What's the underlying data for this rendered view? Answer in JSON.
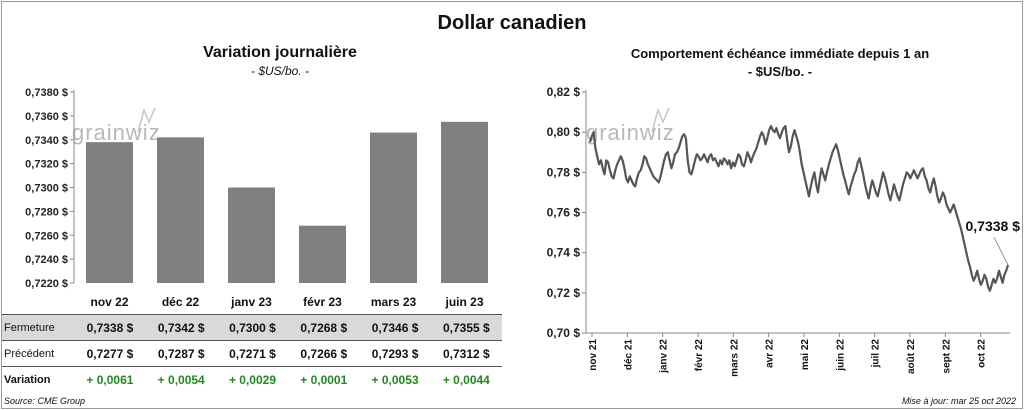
{
  "title": "Dollar canadien",
  "left_chart": {
    "title": "Variation  journalière",
    "subtitle": "- $US/bo. -"
  },
  "right_chart": {
    "title": "Comportement échéance immédiate depuis 1 an",
    "subtitle": "- $US/bo. -",
    "last_label": "0,7338 $"
  },
  "watermark": "grainwiz",
  "table": {
    "rows": [
      {
        "label": "Fermeture",
        "values": [
          "0,7338  $",
          "0,7342  $",
          "0,7300  $",
          "0,7268  $",
          "0,7346  $",
          "0,7355  $"
        ]
      },
      {
        "label": "Précédent",
        "values": [
          "0,7277  $",
          "0,7287  $",
          "0,7271  $",
          "0,7266  $",
          "0,7293  $",
          "0,7312  $"
        ]
      },
      {
        "label": "Variation",
        "values": [
          "+ 0,0061",
          "+ 0,0054",
          "+ 0,0029",
          "+ 0,0001",
          "+ 0,0053",
          "+ 0,0044"
        ]
      }
    ]
  },
  "footer": {
    "source": "Source: CME Group",
    "updated": "Mise à jour: mar 25 oct 2022"
  },
  "colors": {
    "bar": "#808080",
    "line": "#555555",
    "positive": "#1e8a1e",
    "row_highlight": "#d9d9d9"
  },
  "chart_data": [
    {
      "type": "bar",
      "categories": [
        "nov 22",
        "déc 22",
        "janv 23",
        "févr 23",
        "mars 23",
        "juin 23"
      ],
      "series": [
        {
          "values": [
            0.7338,
            0.7342,
            0.73,
            0.7268,
            0.7346,
            0.7355
          ]
        }
      ],
      "ylim": [
        0.722,
        0.738
      ],
      "yticks": [
        "0,7220 $",
        "0,7240 $",
        "0,7260 $",
        "0,7280 $",
        "0,7300 $",
        "0,7320 $",
        "0,7340 $",
        "0,7360 $",
        "0,7380 $"
      ],
      "grid": false
    },
    {
      "type": "line",
      "x_labels": [
        "nov 21",
        "déc 21",
        "janv 22",
        "févr 22",
        "mars 22",
        "avr 22",
        "mai 22",
        "juin 22",
        "juil 22",
        "août 22",
        "sept 22",
        "oct 22"
      ],
      "ylim": [
        0.7,
        0.82
      ],
      "yticks": [
        "0,70 $",
        "0,72 $",
        "0,74 $",
        "0,76 $",
        "0,78 $",
        "0,80 $",
        "0,82 $"
      ],
      "series": [
        {
          "values": [
            0.795,
            0.798,
            0.8,
            0.792,
            0.788,
            0.784,
            0.786,
            0.782,
            0.779,
            0.786,
            0.785,
            0.781,
            0.778,
            0.777,
            0.781,
            0.784,
            0.786,
            0.788,
            0.786,
            0.782,
            0.777,
            0.775,
            0.778,
            0.776,
            0.774,
            0.773,
            0.777,
            0.78,
            0.781,
            0.784,
            0.788,
            0.787,
            0.784,
            0.782,
            0.78,
            0.778,
            0.777,
            0.776,
            0.775,
            0.778,
            0.782,
            0.786,
            0.789,
            0.79,
            0.786,
            0.782,
            0.785,
            0.789,
            0.79,
            0.792,
            0.795,
            0.798,
            0.799,
            0.797,
            0.786,
            0.78,
            0.779,
            0.782,
            0.786,
            0.789,
            0.788,
            0.786,
            0.787,
            0.789,
            0.787,
            0.785,
            0.788,
            0.789,
            0.786,
            0.787,
            0.785,
            0.783,
            0.786,
            0.784,
            0.787,
            0.786,
            0.784,
            0.786,
            0.782,
            0.785,
            0.783,
            0.786,
            0.789,
            0.788,
            0.784,
            0.783,
            0.786,
            0.79,
            0.788,
            0.785,
            0.788,
            0.79,
            0.792,
            0.795,
            0.798,
            0.8,
            0.798,
            0.794,
            0.797,
            0.801,
            0.803,
            0.801,
            0.8,
            0.802,
            0.799,
            0.797,
            0.8,
            0.802,
            0.803,
            0.796,
            0.79,
            0.793,
            0.798,
            0.801,
            0.798,
            0.795,
            0.79,
            0.784,
            0.78,
            0.776,
            0.772,
            0.768,
            0.773,
            0.777,
            0.78,
            0.774,
            0.77,
            0.777,
            0.782,
            0.779,
            0.776,
            0.78,
            0.784,
            0.787,
            0.79,
            0.792,
            0.794,
            0.791,
            0.787,
            0.783,
            0.779,
            0.776,
            0.772,
            0.769,
            0.773,
            0.776,
            0.779,
            0.781,
            0.785,
            0.787,
            0.783,
            0.779,
            0.774,
            0.77,
            0.767,
            0.772,
            0.776,
            0.773,
            0.77,
            0.768,
            0.772,
            0.776,
            0.78,
            0.777,
            0.773,
            0.769,
            0.766,
            0.77,
            0.774,
            0.771,
            0.768,
            0.766,
            0.77,
            0.774,
            0.777,
            0.78,
            0.779,
            0.777,
            0.779,
            0.781,
            0.779,
            0.777,
            0.779,
            0.781,
            0.782,
            0.778,
            0.776,
            0.772,
            0.77,
            0.774,
            0.777,
            0.773,
            0.768,
            0.765,
            0.767,
            0.77,
            0.768,
            0.764,
            0.762,
            0.76,
            0.762,
            0.764,
            0.761,
            0.758,
            0.755,
            0.752,
            0.748,
            0.744,
            0.74,
            0.736,
            0.733,
            0.729,
            0.726,
            0.728,
            0.731,
            0.727,
            0.724,
            0.726,
            0.729,
            0.727,
            0.723,
            0.721,
            0.724,
            0.727,
            0.725,
            0.727,
            0.731,
            0.728,
            0.725,
            0.729,
            0.731,
            0.7338
          ]
        }
      ],
      "grid": false
    }
  ]
}
